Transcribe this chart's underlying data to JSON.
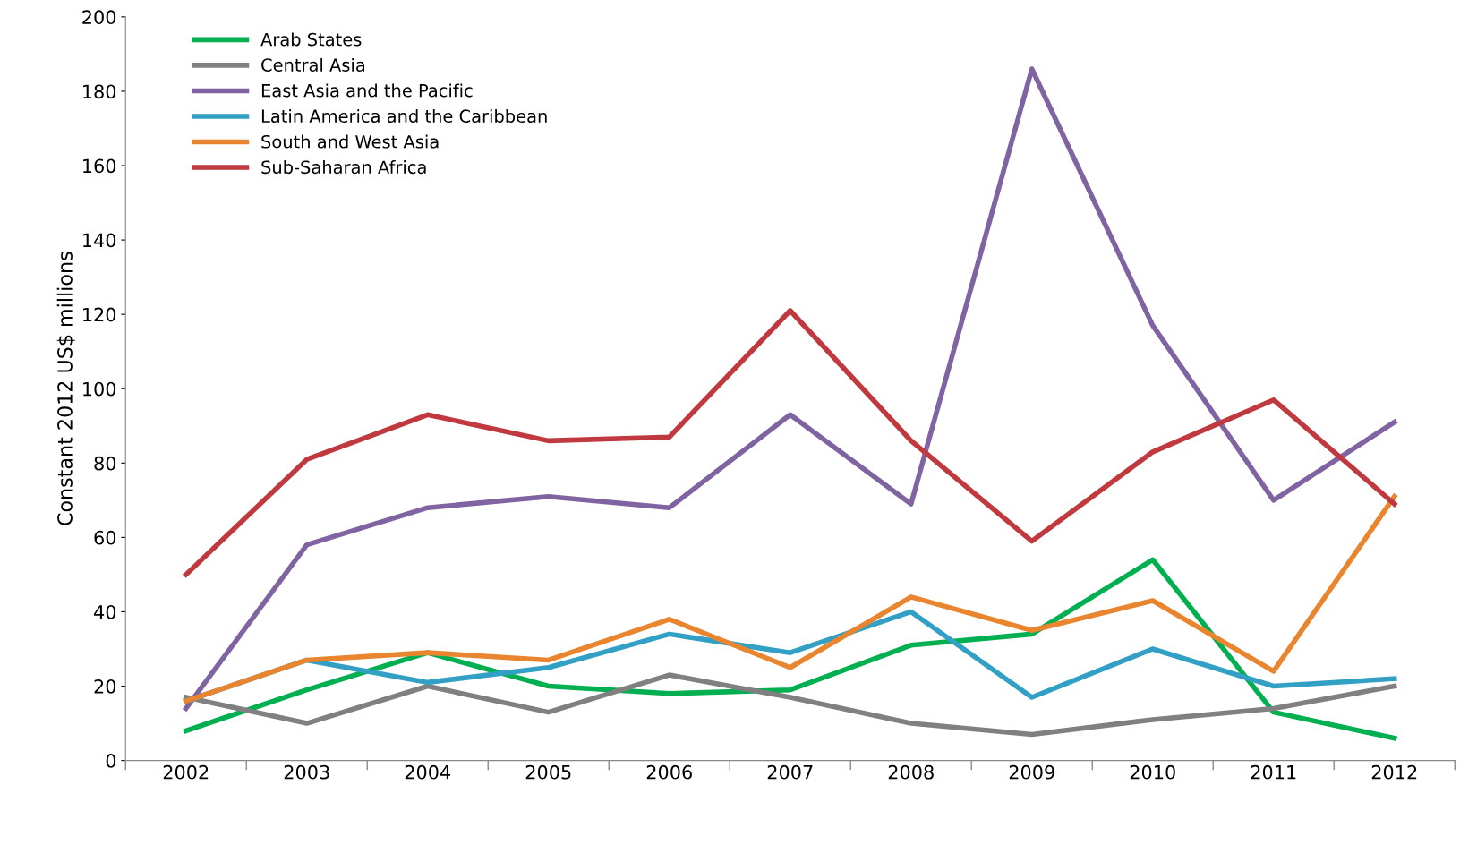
{
  "chart_data": {
    "type": "line",
    "ylabel": "Constant 2012 US$ millions",
    "categories": [
      "2002",
      "2003",
      "2004",
      "2005",
      "2006",
      "2007",
      "2008",
      "2009",
      "2010",
      "2011",
      "2012"
    ],
    "series": [
      {
        "name": "Arab States",
        "color": "#00b050",
        "values": [
          8,
          19,
          29,
          20,
          18,
          19,
          31,
          34,
          54,
          13,
          6
        ]
      },
      {
        "name": "Central Asia",
        "color": "#808080",
        "values": [
          17,
          10,
          20,
          13,
          23,
          17,
          10,
          7,
          11,
          14,
          20
        ]
      },
      {
        "name": "East Asia and the Pacific",
        "color": "#8064a2",
        "values": [
          14,
          58,
          68,
          71,
          68,
          93,
          69,
          186,
          117,
          70,
          91
        ]
      },
      {
        "name": "Latin America and the Caribbean",
        "color": "#31a0c4",
        "values": [
          16,
          27,
          21,
          25,
          34,
          29,
          40,
          17,
          30,
          20,
          22
        ]
      },
      {
        "name": "South and West Asia",
        "color": "#e8852e",
        "values": [
          16,
          27,
          29,
          27,
          38,
          25,
          44,
          35,
          43,
          24,
          71
        ]
      },
      {
        "name": "Sub-Saharan Africa",
        "color": "#c0393f",
        "values": [
          50,
          81,
          93,
          86,
          87,
          121,
          86,
          59,
          83,
          97,
          69
        ]
      }
    ],
    "ylim": [
      0,
      200
    ],
    "yticks": [
      0,
      20,
      40,
      60,
      80,
      100,
      120,
      140,
      160,
      180,
      200
    ],
    "grid": false,
    "legend": "top left",
    "marker": "none",
    "line_style": "solid"
  }
}
